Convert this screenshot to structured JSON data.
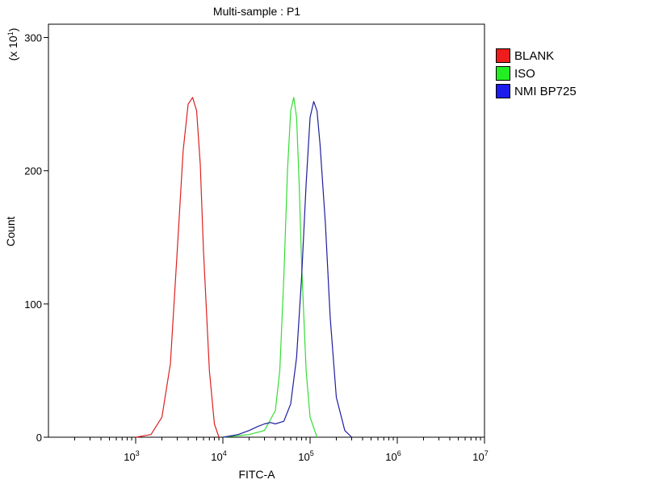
{
  "chart_data": {
    "type": "line",
    "title": "Multi-sample : P1",
    "xlabel": "FITC-A",
    "ylabel": "Count",
    "y_multiplier_label": "(x 10",
    "y_multiplier_exp": "1",
    "x_scale": "log",
    "xlim": [
      100,
      10000000
    ],
    "ylim": [
      0,
      310
    ],
    "x_ticks": [
      {
        "value": 1000,
        "base": "10",
        "exp": "3"
      },
      {
        "value": 10000,
        "base": "10",
        "exp": "4"
      },
      {
        "value": 100000,
        "base": "10",
        "exp": "5"
      },
      {
        "value": 1000000,
        "base": "10",
        "exp": "6"
      },
      {
        "value": 10000000,
        "base": "10",
        "exp": "7"
      }
    ],
    "y_ticks": [
      {
        "value": 0,
        "label": "0"
      },
      {
        "value": 100,
        "label": "100"
      },
      {
        "value": 200,
        "label": "200"
      },
      {
        "value": 300,
        "label": "300"
      }
    ],
    "grid": false,
    "legend_position": "right",
    "series": [
      {
        "name": "BLANK",
        "color": "#dd2020",
        "x": [
          1000,
          1500,
          2000,
          2500,
          3000,
          3500,
          4000,
          4500,
          5000,
          5500,
          6000,
          7000,
          8000,
          9000
        ],
        "y": [
          0,
          2,
          15,
          55,
          140,
          215,
          250,
          255,
          245,
          205,
          140,
          50,
          10,
          0
        ]
      },
      {
        "name": "ISO",
        "color": "#33dd33",
        "x": [
          10000,
          20000,
          30000,
          40000,
          45000,
          50000,
          55000,
          60000,
          65000,
          70000,
          75000,
          80000,
          90000,
          100000,
          120000
        ],
        "y": [
          0,
          2,
          5,
          20,
          50,
          120,
          200,
          245,
          255,
          240,
          190,
          130,
          50,
          15,
          0
        ]
      },
      {
        "name": "NMI BP725",
        "color": "#1e1e9e",
        "x": [
          10000,
          15000,
          20000,
          25000,
          30000,
          35000,
          40000,
          50000,
          60000,
          70000,
          80000,
          90000,
          100000,
          110000,
          120000,
          130000,
          150000,
          170000,
          200000,
          250000,
          300000
        ],
        "y": [
          0,
          2,
          5,
          8,
          10,
          11,
          10,
          12,
          25,
          60,
          120,
          190,
          240,
          252,
          245,
          220,
          160,
          90,
          30,
          5,
          0
        ]
      }
    ]
  }
}
